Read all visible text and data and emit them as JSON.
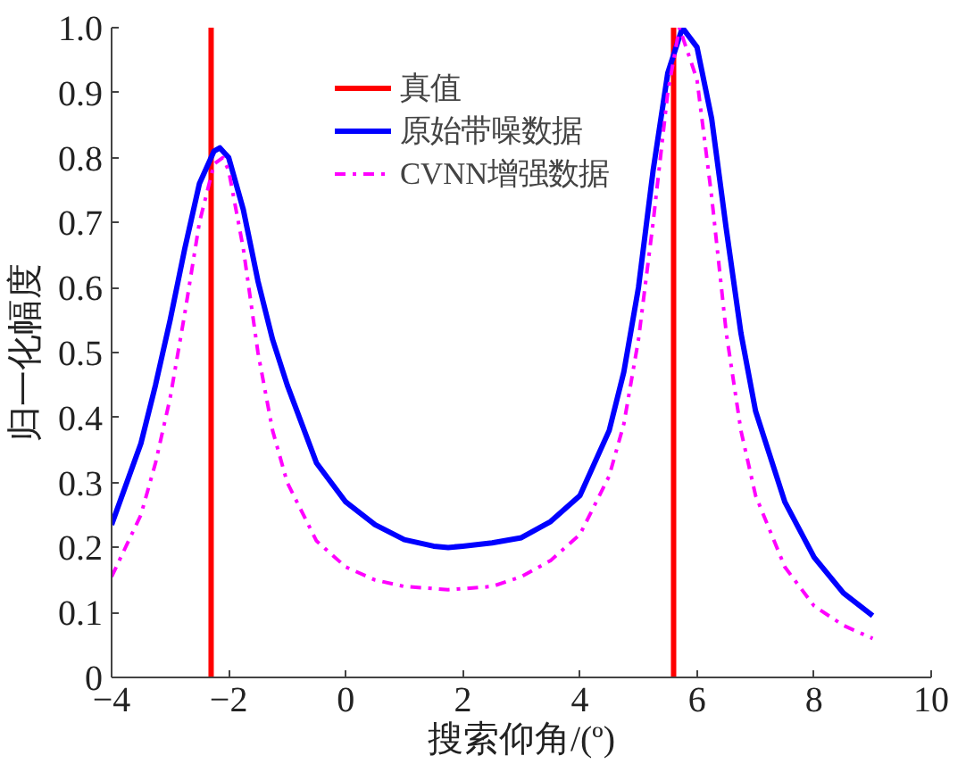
{
  "chart_data": {
    "type": "line",
    "xlabel": "搜索仰角/(º)",
    "ylabel": "归一化幅度",
    "xlim": [
      -4,
      10
    ],
    "xticks": [
      -4,
      -2,
      0,
      2,
      4,
      6,
      8,
      10
    ],
    "ylim": [
      0,
      1
    ],
    "yticks": [
      0,
      {
        "value": 0.1,
        "label": "0.1"
      },
      {
        "value": 0.2,
        "label": "0.2"
      },
      {
        "value": 0.3,
        "label": "0.3"
      },
      {
        "value": 0.4,
        "label": "0.4"
      },
      {
        "value": 0.5,
        "label": "0.5"
      },
      {
        "value": 0.6,
        "label": "0.6"
      },
      {
        "value": 0.7,
        "label": "0.7"
      },
      {
        "value": 0.8,
        "label": "0.8"
      },
      {
        "value": 0.9,
        "label": "0.9"
      },
      {
        "value": 1,
        "label": "1.0"
      }
    ],
    "grid": false,
    "legend": "top",
    "marker": "none",
    "series": [
      {
        "name": "真值",
        "color": "#ff0000",
        "line_style": "solid",
        "x": [
          -2.3,
          -2.3,
          null,
          5.6,
          5.6
        ],
        "values": [
          0,
          1,
          null,
          0,
          1
        ]
      },
      {
        "name": "原始带噪数据",
        "color": "#0000ff",
        "line_style": "solid",
        "x": [
          -4,
          -3.5,
          -3.25,
          -3,
          -2.75,
          -2.5,
          -2.25,
          -2.15,
          -2,
          -1.75,
          -1.5,
          -1.25,
          -1,
          -0.5,
          0,
          0.5,
          1,
          1.5,
          1.75,
          2,
          2.5,
          3,
          3.5,
          4,
          4.5,
          4.75,
          5,
          5.25,
          5.5,
          5.75,
          6,
          6.25,
          6.5,
          6.75,
          7,
          7.5,
          8,
          8.5,
          9
        ],
        "values": [
          0.235,
          0.36,
          0.45,
          0.55,
          0.66,
          0.76,
          0.81,
          0.815,
          0.8,
          0.72,
          0.61,
          0.52,
          0.45,
          0.33,
          0.27,
          0.235,
          0.212,
          0.202,
          0.2,
          0.202,
          0.207,
          0.215,
          0.24,
          0.28,
          0.38,
          0.47,
          0.6,
          0.78,
          0.93,
          1.0,
          0.97,
          0.86,
          0.69,
          0.53,
          0.41,
          0.27,
          0.185,
          0.13,
          0.095
        ]
      },
      {
        "name": "CVNN增强数据",
        "color": "#ff00ff",
        "line_style": "dashdot",
        "x": [
          -4,
          -3.5,
          -3.25,
          -3,
          -2.75,
          -2.5,
          -2.25,
          -2.1,
          -2,
          -1.75,
          -1.5,
          -1.25,
          -1,
          -0.5,
          0,
          0.5,
          1,
          1.75,
          2.5,
          3,
          3.5,
          4,
          4.5,
          4.75,
          5,
          5.25,
          5.5,
          5.7,
          6,
          6.25,
          6.5,
          6.75,
          7,
          7.5,
          8,
          8.5,
          9
        ],
        "values": [
          0.155,
          0.25,
          0.33,
          0.43,
          0.56,
          0.7,
          0.79,
          0.8,
          0.78,
          0.66,
          0.5,
          0.38,
          0.3,
          0.21,
          0.17,
          0.15,
          0.14,
          0.135,
          0.14,
          0.155,
          0.18,
          0.22,
          0.31,
          0.39,
          0.52,
          0.7,
          0.9,
          1.0,
          0.92,
          0.74,
          0.53,
          0.38,
          0.28,
          0.17,
          0.11,
          0.08,
          0.06
        ]
      }
    ]
  }
}
